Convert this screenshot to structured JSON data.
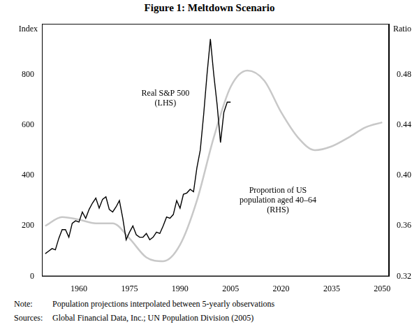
{
  "chart_data": {
    "type": "line",
    "title": "Figure 1: Meltdown Scenario",
    "y_label": "Index",
    "y2_label": "Ratio",
    "xlim": [
      1949,
      2052
    ],
    "xticks": [
      1960,
      1975,
      1990,
      2005,
      2020,
      2035,
      2050
    ],
    "ylim": [
      0,
      1000
    ],
    "yticks": [
      0,
      200,
      400,
      600,
      800
    ],
    "y2lim": [
      0.32,
      0.52
    ],
    "y2ticks": [
      0.32,
      0.36,
      {
        "value": 0.4,
        "label": "0.40"
      },
      0.44,
      0.48
    ],
    "grid": false,
    "series": [
      {
        "name": "Real S&P 500",
        "annotation": "(LHS)",
        "color": "#000000",
        "line_style": "solid",
        "x": [
          1950,
          1951,
          1952,
          1953,
          1954,
          1955,
          1956,
          1957,
          1958,
          1959,
          1960,
          1961,
          1962,
          1963,
          1964,
          1965,
          1966,
          1967,
          1968,
          1969,
          1970,
          1971,
          1972,
          1973,
          1974,
          1975,
          1976,
          1977,
          1978,
          1979,
          1980,
          1981,
          1982,
          1983,
          1984,
          1985,
          1986,
          1987,
          1988,
          1989,
          1990,
          1991,
          1992,
          1993,
          1994,
          1995,
          1996,
          1997,
          1998,
          1999,
          2000,
          2001,
          2002,
          2003,
          2004,
          2005
        ],
        "values": [
          90,
          100,
          110,
          105,
          150,
          185,
          185,
          155,
          210,
          220,
          215,
          255,
          230,
          265,
          290,
          310,
          270,
          305,
          315,
          265,
          255,
          275,
          300,
          230,
          145,
          175,
          200,
          165,
          155,
          155,
          170,
          145,
          155,
          175,
          170,
          200,
          235,
          230,
          245,
          300,
          270,
          325,
          330,
          345,
          335,
          430,
          500,
          640,
          800,
          940,
          800,
          680,
          530,
          650,
          690,
          690
        ]
      },
      {
        "name": "Proportion of US population aged 40–64",
        "annotation": "(RHS)",
        "color": "#c8c8c8",
        "line_style": "smooth",
        "axis": "y2",
        "x": [
          1950,
          1955,
          1960,
          1965,
          1970,
          1975,
          1980,
          1985,
          1990,
          1995,
          2000,
          2005,
          2010,
          2015,
          2020,
          2025,
          2030,
          2035,
          2040,
          2045,
          2050
        ],
        "values": [
          0.36,
          0.367,
          0.365,
          0.362,
          0.362,
          0.35,
          0.335,
          0.332,
          0.345,
          0.38,
          0.43,
          0.47,
          0.483,
          0.475,
          0.45,
          0.43,
          0.42,
          0.423,
          0.43,
          0.438,
          0.442
        ]
      }
    ],
    "footnotes": [
      {
        "label": "Note:",
        "text": "Population projections interpolated between 5-yearly observations"
      },
      {
        "label": "Sources:",
        "text": "Global Financial Data, Inc.; UN Population Division (2005)"
      }
    ]
  }
}
